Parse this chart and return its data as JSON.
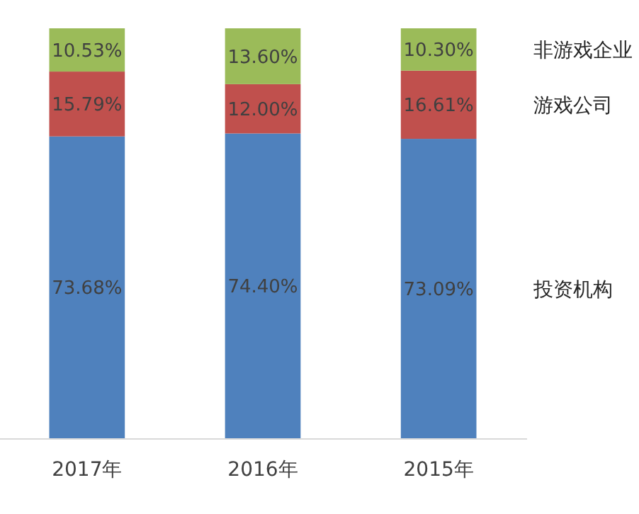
{
  "chart_data": {
    "type": "bar",
    "stacked": true,
    "categories": [
      "2017年",
      "2016年",
      "2015年"
    ],
    "series": [
      {
        "name": "投资机构",
        "color": "#4f81bd",
        "values": [
          73.68,
          74.4,
          73.09
        ],
        "value_labels": [
          "73.68%",
          "74.40%",
          "73.09%"
        ]
      },
      {
        "name": "游戏公司",
        "color": "#c0504d",
        "values": [
          15.79,
          12.0,
          16.61
        ],
        "value_labels": [
          "15.79%",
          "12.00%",
          "16.61%"
        ]
      },
      {
        "name": "非游戏企业",
        "color": "#9bbb59",
        "values": [
          10.53,
          13.6,
          10.3
        ],
        "value_labels": [
          "10.53%",
          "13.60%",
          "10.30%"
        ]
      }
    ]
  }
}
